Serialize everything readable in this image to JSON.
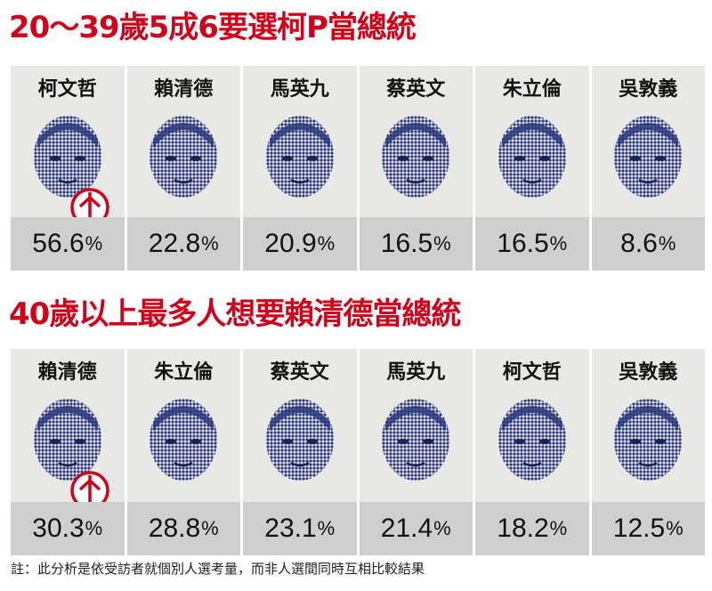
{
  "chart_data": [
    {
      "type": "table",
      "title": "20～39歲5成6要選柯P當總統",
      "categories": [
        "柯文哲",
        "賴清德",
        "馬英九",
        "蔡英文",
        "朱立倫",
        "吳敦義"
      ],
      "values": [
        56.6,
        22.8,
        20.9,
        16.5,
        16.5,
        8.6
      ],
      "value_labels": [
        "56.6",
        "22.8",
        "20.9",
        "16.5",
        "16.5",
        "8.6"
      ],
      "unit": "%"
    },
    {
      "type": "table",
      "title": "40歲以上最多人想要賴清德當總統",
      "categories": [
        "賴清德",
        "朱立倫",
        "蔡英文",
        "馬英九",
        "柯文哲",
        "吳敦義"
      ],
      "values": [
        30.3,
        28.8,
        23.1,
        21.4,
        18.2,
        12.5
      ],
      "value_labels": [
        "30.3",
        "28.8",
        "23.1",
        "21.4",
        "18.2",
        "12.5"
      ],
      "unit": "%"
    }
  ],
  "footnote": "註：此分析是依受訪者就個別人選考量，而非人選間同時互相比較結果",
  "colors": {
    "title": "#d0021b",
    "portrait": "#2c3a7c",
    "vote_stamp": "#d0021b",
    "name_panel": "#e8e8e6",
    "value_panel": "#cfcfcf"
  },
  "icons": {
    "portrait": "halftone-portrait-icon",
    "stamp": "ballot-stamp-icon"
  }
}
